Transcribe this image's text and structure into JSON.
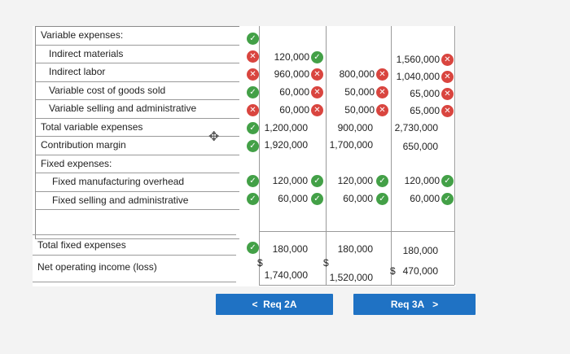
{
  "rows": [
    {
      "label": "Variable expenses:"
    },
    {
      "label": "Indirect materials"
    },
    {
      "label": "Indirect labor"
    },
    {
      "label": "Variable cost of goods sold"
    },
    {
      "label": "Variable selling and administrative"
    },
    {
      "label": "Total variable expenses"
    },
    {
      "label": "Contribution margin"
    },
    {
      "label": "Fixed expenses:"
    },
    {
      "label": "Fixed manufacturing overhead"
    },
    {
      "label": "Fixed selling and administrative"
    },
    {
      "label": ""
    }
  ],
  "bottom_rows": [
    {
      "label": "Total fixed expenses"
    },
    {
      "label": "Net operating income (loss)"
    }
  ],
  "columns": [
    {
      "indirect_materials": "120,000",
      "indirect_labor": "960,000",
      "var_cogs": "60,000",
      "var_sa": "60,000",
      "total_variable": "1,200,000",
      "contribution": "1,920,000",
      "fixed_mfg": "120,000",
      "fixed_sa": "60,000",
      "total_fixed": "180,000",
      "noi": "1,740,000",
      "noi_prefix": "$"
    },
    {
      "indirect_labor": "800,000",
      "var_cogs": "50,000",
      "var_sa": "50,000",
      "total_variable": "900,000",
      "contribution": "1,700,000",
      "fixed_mfg": "120,000",
      "fixed_sa": "60,000",
      "total_fixed": "180,000",
      "noi": "1,520,000",
      "noi_prefix": "$"
    },
    {
      "indirect_materials": "1,560,000",
      "indirect_labor": "1,040,000",
      "var_cogs": "65,000",
      "var_sa": "65,000",
      "total_variable": "2,730,000",
      "contribution": "650,000",
      "fixed_mfg": "120,000",
      "fixed_sa": "60,000",
      "total_fixed": "180,000",
      "noi": "470,000",
      "noi_prefix": "$"
    }
  ],
  "buttons": {
    "prev": "Req 2A",
    "next": "Req 3A"
  },
  "icons": {
    "ok": "check-icon",
    "bad": "x-icon",
    "ok_color": "#43a047",
    "bad_color": "#d9453f",
    "ok_glyph": "✓",
    "bad_glyph": "✕",
    "prev_glyph": "<",
    "next_glyph": ">"
  }
}
